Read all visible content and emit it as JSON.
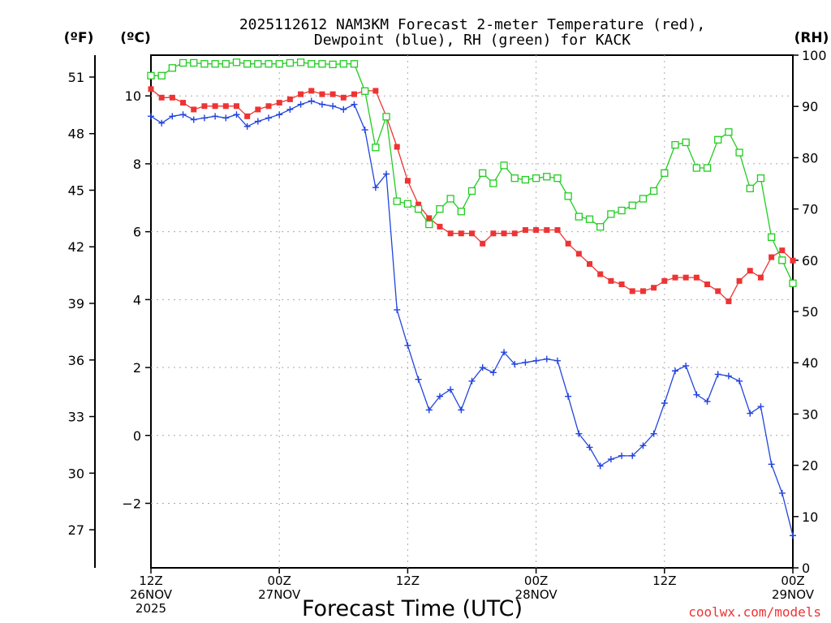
{
  "chart_data": {
    "type": "line",
    "title": "2025112612 NAM3KM Forecast 2-meter Temperature (red),",
    "subtitle": "Dewpoint (blue), RH (green) for KACK",
    "xlabel": "Forecast Time (UTC)",
    "ylabel_f": "(ºF)",
    "ylabel_c": "(ºC)",
    "ylabel_rh": "(RH)",
    "watermark": "coolwx.com/models",
    "x_range": [
      0,
      60
    ],
    "y_range_c": [
      -3.9,
      11.2
    ],
    "y_range_rh": [
      0,
      100
    ],
    "x_ticks": [
      {
        "hour": 0,
        "l1": "12Z",
        "l2": "26NOV",
        "l3": "2025"
      },
      {
        "hour": 12,
        "l1": "00Z",
        "l2": "27NOV",
        "l3": ""
      },
      {
        "hour": 24,
        "l1": "12Z",
        "l2": "",
        "l3": ""
      },
      {
        "hour": 36,
        "l1": "00Z",
        "l2": "28NOV",
        "l3": ""
      },
      {
        "hour": 48,
        "l1": "12Z",
        "l2": "",
        "l3": ""
      },
      {
        "hour": 60,
        "l1": "00Z",
        "l2": "29NOV",
        "l3": ""
      }
    ],
    "y_ticks_c": [
      {
        "v": -2,
        "label": "−2"
      },
      {
        "v": 0,
        "label": "0"
      },
      {
        "v": 2,
        "label": "2"
      },
      {
        "v": 4,
        "label": "4"
      },
      {
        "v": 6,
        "label": "6"
      },
      {
        "v": 8,
        "label": "8"
      },
      {
        "v": 10,
        "label": "10"
      }
    ],
    "y_ticks_f": [
      {
        "v": 27,
        "label": "27"
      },
      {
        "v": 30,
        "label": "30"
      },
      {
        "v": 33,
        "label": "33"
      },
      {
        "v": 36,
        "label": "36"
      },
      {
        "v": 39,
        "label": "39"
      },
      {
        "v": 42,
        "label": "42"
      },
      {
        "v": 45,
        "label": "45"
      },
      {
        "v": 48,
        "label": "48"
      },
      {
        "v": 51,
        "label": "51"
      }
    ],
    "y_ticks_rh": [
      {
        "v": 0,
        "label": "0"
      },
      {
        "v": 10,
        "label": "10"
      },
      {
        "v": 20,
        "label": "20"
      },
      {
        "v": 30,
        "label": "30"
      },
      {
        "v": 40,
        "label": "40"
      },
      {
        "v": 50,
        "label": "50"
      },
      {
        "v": 60,
        "label": "60"
      },
      {
        "v": 70,
        "label": "70"
      },
      {
        "v": 80,
        "label": "80"
      },
      {
        "v": 90,
        "label": "90"
      },
      {
        "v": 100,
        "label": "100"
      }
    ],
    "x": [
      0,
      1,
      2,
      3,
      4,
      5,
      6,
      7,
      8,
      9,
      10,
      11,
      12,
      13,
      14,
      15,
      16,
      17,
      18,
      19,
      20,
      21,
      22,
      23,
      24,
      25,
      26,
      27,
      28,
      29,
      30,
      31,
      32,
      33,
      34,
      35,
      36,
      37,
      38,
      39,
      40,
      41,
      42,
      43,
      44,
      45,
      46,
      47,
      48,
      49,
      50,
      51,
      52,
      53,
      54,
      55,
      56,
      57,
      58,
      59,
      60
    ],
    "series": [
      {
        "name": "Temperature",
        "color": "#ee3333",
        "axis": "C",
        "marker": "filled-square",
        "values": [
          10.2,
          9.95,
          9.95,
          9.8,
          9.6,
          9.7,
          9.7,
          9.7,
          9.7,
          9.4,
          9.6,
          9.7,
          9.8,
          9.9,
          10.05,
          10.15,
          10.05,
          10.05,
          9.95,
          10.05,
          10.15,
          10.15,
          9.4,
          8.5,
          7.5,
          6.8,
          6.4,
          6.15,
          5.95,
          5.95,
          5.95,
          5.65,
          5.95,
          5.95,
          5.95,
          6.05,
          6.05,
          6.05,
          6.05,
          5.65,
          5.35,
          5.05,
          4.75,
          4.55,
          4.45,
          4.25,
          4.25,
          4.35,
          4.55,
          4.65,
          4.65,
          4.65,
          4.45,
          4.25,
          3.95,
          4.55,
          4.85,
          4.65,
          5.25,
          5.45,
          5.15
        ]
      },
      {
        "name": "Dewpoint",
        "color": "#2244dd",
        "axis": "C",
        "marker": "plus",
        "values": [
          9.4,
          9.2,
          9.4,
          9.45,
          9.3,
          9.35,
          9.4,
          9.35,
          9.45,
          9.1,
          9.25,
          9.35,
          9.45,
          9.6,
          9.75,
          9.85,
          9.75,
          9.7,
          9.6,
          9.75,
          9.0,
          7.3,
          7.7,
          3.7,
          2.65,
          1.65,
          0.75,
          1.15,
          1.35,
          0.75,
          1.6,
          2.0,
          1.85,
          2.45,
          2.1,
          2.15,
          2.2,
          2.25,
          2.2,
          1.15,
          0.05,
          -0.35,
          -0.9,
          -0.7,
          -0.6,
          -0.6,
          -0.3,
          0.05,
          0.95,
          1.9,
          2.05,
          1.2,
          1.0,
          1.8,
          1.75,
          1.6,
          0.65,
          0.85,
          -0.85,
          -1.7,
          -2.95
        ]
      },
      {
        "name": "RH",
        "color": "#22cc22",
        "axis": "RH",
        "marker": "open-square",
        "values": [
          96,
          96,
          97.5,
          98.5,
          98.5,
          98.3,
          98.3,
          98.3,
          98.6,
          98.3,
          98.3,
          98.3,
          98.3,
          98.5,
          98.6,
          98.3,
          98.3,
          98.2,
          98.3,
          98.3,
          93,
          82,
          88,
          71.5,
          71,
          70,
          67,
          70,
          72,
          69.5,
          73.5,
          77,
          75,
          78.5,
          76,
          75.7,
          76,
          76.3,
          76,
          72.5,
          68.5,
          68,
          66.5,
          69,
          69.7,
          70.7,
          72,
          73.5,
          77,
          82.5,
          83,
          78,
          78,
          83.5,
          85,
          81,
          74,
          76,
          64.5,
          60,
          55.5
        ]
      }
    ]
  }
}
